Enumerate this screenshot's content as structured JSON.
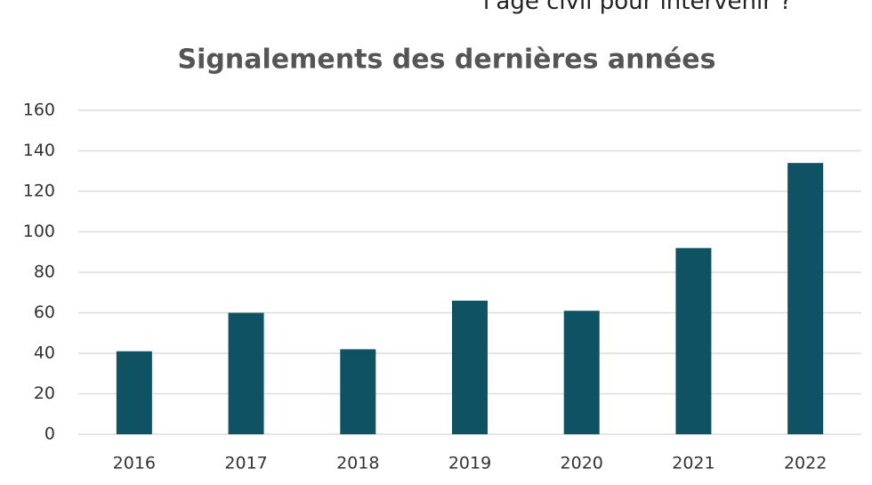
{
  "page_text": "l'âge civil pour intervenir ?",
  "chart_data": {
    "type": "bar",
    "title": "Signalements des dernières années",
    "categories": [
      "2016",
      "2017",
      "2018",
      "2019",
      "2020",
      "2021",
      "2022"
    ],
    "values": [
      41,
      60,
      42,
      66,
      61,
      92,
      134
    ],
    "color": "#0e5264",
    "ylim": [
      0,
      160
    ],
    "yticks": [
      0,
      20,
      40,
      60,
      80,
      100,
      120,
      140,
      160
    ],
    "grid": true
  }
}
